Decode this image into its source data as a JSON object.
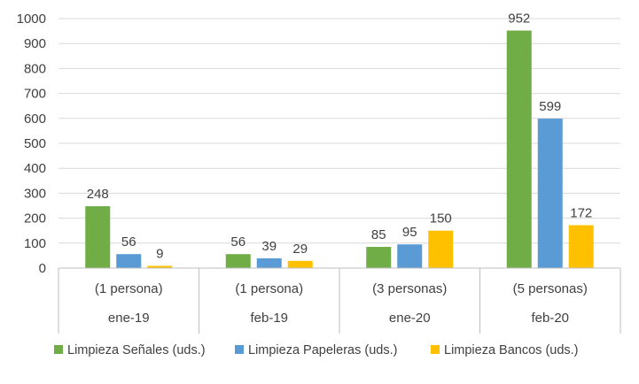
{
  "chart_data": {
    "type": "bar",
    "title": "",
    "xlabel": "",
    "ylabel": "",
    "ylim": [
      0,
      1000
    ],
    "yticks": [
      0,
      100,
      200,
      300,
      400,
      500,
      600,
      700,
      800,
      900,
      1000
    ],
    "grid": true,
    "legend_position": "bottom",
    "categories": [
      {
        "sub": "(1 persona)",
        "label": "ene-19"
      },
      {
        "sub": "(1 persona)",
        "label": "feb-19"
      },
      {
        "sub": "(3 personas)",
        "label": "ene-20"
      },
      {
        "sub": "(5 personas)",
        "label": "feb-20"
      }
    ],
    "series": [
      {
        "name": "Limpieza Señales (uds.)",
        "color": "#70ad47",
        "values": [
          248,
          56,
          85,
          952
        ]
      },
      {
        "name": "Limpieza Papeleras (uds.)",
        "color": "#5b9bd5",
        "values": [
          56,
          39,
          95,
          599
        ]
      },
      {
        "name": "Limpieza Bancos (uds.)",
        "color": "#ffc000",
        "values": [
          9,
          29,
          150,
          172
        ]
      }
    ]
  }
}
